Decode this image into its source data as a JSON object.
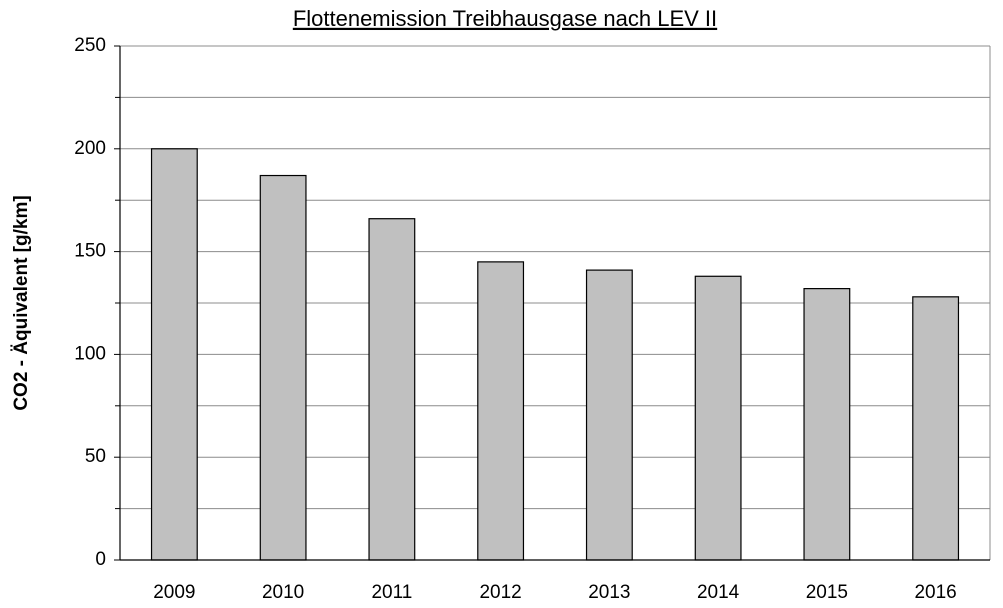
{
  "chart_data": {
    "type": "bar",
    "title": "Flottenemission Treibhausgase nach LEV II",
    "y_label": "CO2 - Äquivalent [g/km]",
    "categories": [
      "2009",
      "2010",
      "2011",
      "2012",
      "2013",
      "2014",
      "2015",
      "2016"
    ],
    "values": [
      200,
      187,
      166,
      145,
      141,
      138,
      132,
      128
    ],
    "color": "#c0c0c0",
    "ylim": [
      0,
      250
    ],
    "yticks": [
      0,
      50,
      100,
      150,
      200,
      250
    ],
    "yminorticks": [
      25,
      75,
      125,
      175,
      225
    ],
    "grid": true
  }
}
